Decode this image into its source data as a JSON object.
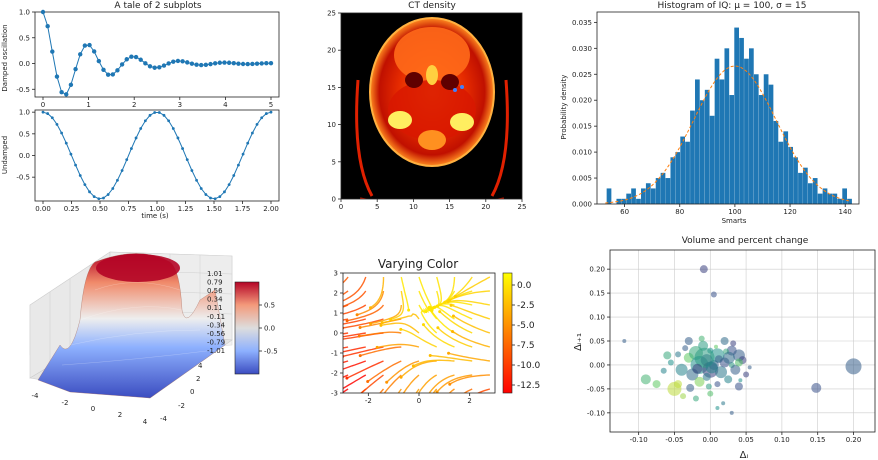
{
  "chart_data": [
    {
      "type": "line",
      "title": "A tale of 2 subplots",
      "ylabel": "Damped oscillation",
      "xlim": [
        0,
        5
      ],
      "ylim": [
        -0.65,
        1.0
      ],
      "xticks": [
        "0",
        "1",
        "2",
        "3",
        "4",
        "5"
      ],
      "yticks": [
        "-0.5",
        "0.0",
        "0.5",
        "1.0"
      ],
      "series": [
        {
          "formula": "cos(2*pi*t)*exp(-t)",
          "x_start": 0,
          "x_end": 5,
          "n_points": 50,
          "color": "#1f77b4"
        }
      ]
    },
    {
      "type": "line",
      "xlabel": "time (s)",
      "ylabel": "Undamped",
      "xlim": [
        0,
        2
      ],
      "ylim": [
        -1.05,
        1.05
      ],
      "xticks": [
        "0.00",
        "0.25",
        "0.50",
        "0.75",
        "1.00",
        "1.25",
        "1.50",
        "1.75",
        "2.00"
      ],
      "yticks": [
        "-0.5",
        "0.0",
        "0.5",
        "1.0"
      ],
      "series": [
        {
          "formula": "cos(2*pi*t)",
          "x_start": 0,
          "x_end": 2,
          "n_points": 50,
          "color": "#1f77b4"
        }
      ]
    },
    {
      "type": "heatmap",
      "title": "CT density",
      "xlim": [
        0,
        25
      ],
      "ylim": [
        0,
        25
      ],
      "xticks": [
        "0",
        "5",
        "10",
        "15",
        "20",
        "25"
      ],
      "yticks": [
        "0",
        "5",
        "10",
        "15",
        "20",
        "25"
      ],
      "colormap": "hot"
    },
    {
      "type": "bar",
      "title": "Histogram of IQ: μ = 100, σ = 15",
      "xlabel": "Smarts",
      "ylabel": "Probability density",
      "xlim": [
        50,
        145
      ],
      "ylim": [
        0,
        0.037
      ],
      "xticks": [
        "60",
        "80",
        "100",
        "120",
        "140"
      ],
      "yticks": [
        "0.000",
        "0.005",
        "0.010",
        "0.015",
        "0.020",
        "0.025",
        "0.030",
        "0.035"
      ],
      "mu": 100,
      "sigma": 15,
      "bin_start": 53.5,
      "bin_width": 1.78,
      "values": [
        0.003,
        0,
        0.001,
        0.001,
        0.002,
        0.003,
        0.001,
        0.003,
        0.004,
        0.003,
        0.005,
        0.006,
        0.005,
        0.009,
        0.01,
        0.013,
        0.012,
        0.018,
        0.024,
        0.02,
        0.022,
        0.017,
        0.028,
        0.024,
        0.03,
        0.021,
        0.034,
        0.032,
        0.028,
        0.03,
        0.025,
        0.021,
        0.025,
        0.023,
        0.016,
        0.012,
        0.014,
        0.011,
        0.009,
        0.006,
        0.007,
        0.004,
        0.005,
        0.002,
        0.003,
        0.002,
        0.002,
        0.001,
        0.003,
        0.001
      ],
      "fit_line": {
        "style": "dashed",
        "color": "#ff7f0e"
      },
      "bar_color": "#1f77b4"
    },
    {
      "type": "area",
      "subtype": "surface3d",
      "formula": "sin(sqrt(x^2+y^2))",
      "colormap": "coolwarm",
      "zticks": [
        "-1.01",
        "-0.79",
        "-0.56",
        "-0.34",
        "-0.11",
        "0.11",
        "0.34",
        "0.56",
        "0.79",
        "1.01"
      ],
      "xticks": [
        "-4",
        "-2",
        "0",
        "2",
        "4"
      ],
      "yticks": [
        "-4",
        "-2",
        "0",
        "2",
        "4"
      ],
      "colorbar_ticks": [
        "-0.5",
        "0.0",
        "0.5"
      ]
    },
    {
      "type": "heatmap",
      "subtype": "streamplot",
      "title": "Varying Color",
      "xlim": [
        -3,
        3
      ],
      "ylim": [
        -3,
        3
      ],
      "xticks": [
        "-2",
        "0",
        "2"
      ],
      "yticks": [
        "-3",
        "-2",
        "-1",
        "0",
        "1",
        "2",
        "3"
      ],
      "colormap": "autumn",
      "colorbar_ticks": [
        "0.0",
        "-2.5",
        "-5.0",
        "-7.5",
        "-10.0",
        "-12.5"
      ],
      "colorbar_range": [
        -13.5,
        1.5
      ]
    },
    {
      "type": "scatter",
      "title": "Volume and percent change",
      "xlabel": "Δᵢ",
      "ylabel": "Δᵢ₊₁",
      "xlim": [
        -0.14,
        0.23
      ],
      "ylim": [
        -0.14,
        0.24
      ],
      "xticks": [
        "-0.10",
        "-0.05",
        "0.00",
        "0.05",
        "0.10",
        "0.15",
        "0.20"
      ],
      "yticks": [
        "-0.10",
        "-0.05",
        "0.00",
        "0.05",
        "0.10",
        "0.15",
        "0.20"
      ],
      "grid": true,
      "points": [
        [
          0.2,
          -0.003,
          8,
          0.3
        ],
        [
          0.148,
          -0.048,
          5,
          0.25
        ],
        [
          -0.009,
          0.2,
          4,
          0.2
        ],
        [
          0.005,
          0.147,
          3,
          0.25
        ],
        [
          -0.12,
          0.05,
          2,
          0.3
        ],
        [
          -0.09,
          -0.03,
          5,
          0.65
        ],
        [
          -0.075,
          -0.04,
          4,
          0.75
        ],
        [
          -0.05,
          -0.05,
          7,
          0.9
        ],
        [
          -0.045,
          -0.04,
          4,
          0.9
        ],
        [
          -0.038,
          -0.065,
          3,
          0.85
        ],
        [
          -0.02,
          -0.07,
          3,
          0.6
        ],
        [
          0.0,
          -0.06,
          3,
          0.7
        ],
        [
          0.01,
          -0.09,
          2,
          0.5
        ],
        [
          0.018,
          -0.08,
          2,
          0.4
        ],
        [
          0.03,
          -0.1,
          2,
          0.3
        ],
        [
          0.04,
          -0.045,
          4,
          0.25
        ],
        [
          0.05,
          -0.02,
          3,
          0.2
        ],
        [
          -0.03,
          0.05,
          4,
          0.3
        ],
        [
          -0.01,
          0.04,
          5,
          0.55
        ],
        [
          0.02,
          0.05,
          4,
          0.35
        ],
        [
          0.03,
          0.03,
          5,
          0.25
        ],
        [
          0.04,
          0.02,
          6,
          0.3
        ],
        [
          0.045,
          0.01,
          4,
          0.2
        ],
        [
          -0.06,
          0.02,
          4,
          0.6
        ],
        [
          -0.055,
          0.005,
          3,
          0.5
        ],
        [
          -0.04,
          -0.01,
          6,
          0.45
        ],
        [
          -0.03,
          0.015,
          5,
          0.75
        ],
        [
          -0.02,
          0.025,
          7,
          0.6
        ],
        [
          -0.015,
          0.0,
          9,
          0.5
        ],
        [
          -0.005,
          0.01,
          6,
          0.3
        ],
        [
          0.0,
          -0.01,
          8,
          0.2
        ],
        [
          0.005,
          0.0,
          5,
          0.3
        ],
        [
          0.01,
          0.02,
          7,
          0.5
        ],
        [
          0.015,
          -0.015,
          6,
          0.4
        ],
        [
          0.02,
          0.005,
          5,
          0.25
        ],
        [
          0.025,
          -0.03,
          4,
          0.45
        ],
        [
          0.03,
          0.0,
          3,
          0.55
        ],
        [
          0.035,
          -0.01,
          5,
          0.3
        ],
        [
          0.04,
          0.005,
          4,
          0.7
        ],
        [
          -0.025,
          -0.02,
          6,
          0.35
        ],
        [
          -0.015,
          -0.035,
          5,
          0.8
        ],
        [
          -0.005,
          -0.025,
          4,
          0.4
        ],
        [
          0.0,
          0.03,
          3,
          0.5
        ],
        [
          0.01,
          -0.04,
          3,
          0.25
        ],
        [
          -0.035,
          0.035,
          3,
          0.3
        ],
        [
          -0.008,
          0.015,
          10,
          0.55
        ],
        [
          0.002,
          -0.005,
          6,
          0.45
        ],
        [
          -0.018,
          -0.008,
          5,
          0.2
        ],
        [
          0.012,
          0.012,
          4,
          0.3
        ],
        [
          0.022,
          0.028,
          3,
          0.6
        ],
        [
          -0.045,
          0.022,
          3,
          0.4
        ],
        [
          0.055,
          -0.005,
          2,
          0.3
        ],
        [
          -0.065,
          -0.012,
          3,
          0.45
        ],
        [
          0.008,
          0.038,
          2,
          0.75
        ],
        [
          -0.028,
          -0.048,
          4,
          0.3
        ],
        [
          0.032,
          0.045,
          3,
          0.2
        ],
        [
          -0.012,
          0.055,
          3,
          0.65
        ],
        [
          0.042,
          -0.032,
          2,
          0.5
        ],
        [
          -0.002,
          -0.045,
          3,
          0.55
        ],
        [
          0.026,
          0.015,
          6,
          0.35
        ]
      ]
    }
  ]
}
